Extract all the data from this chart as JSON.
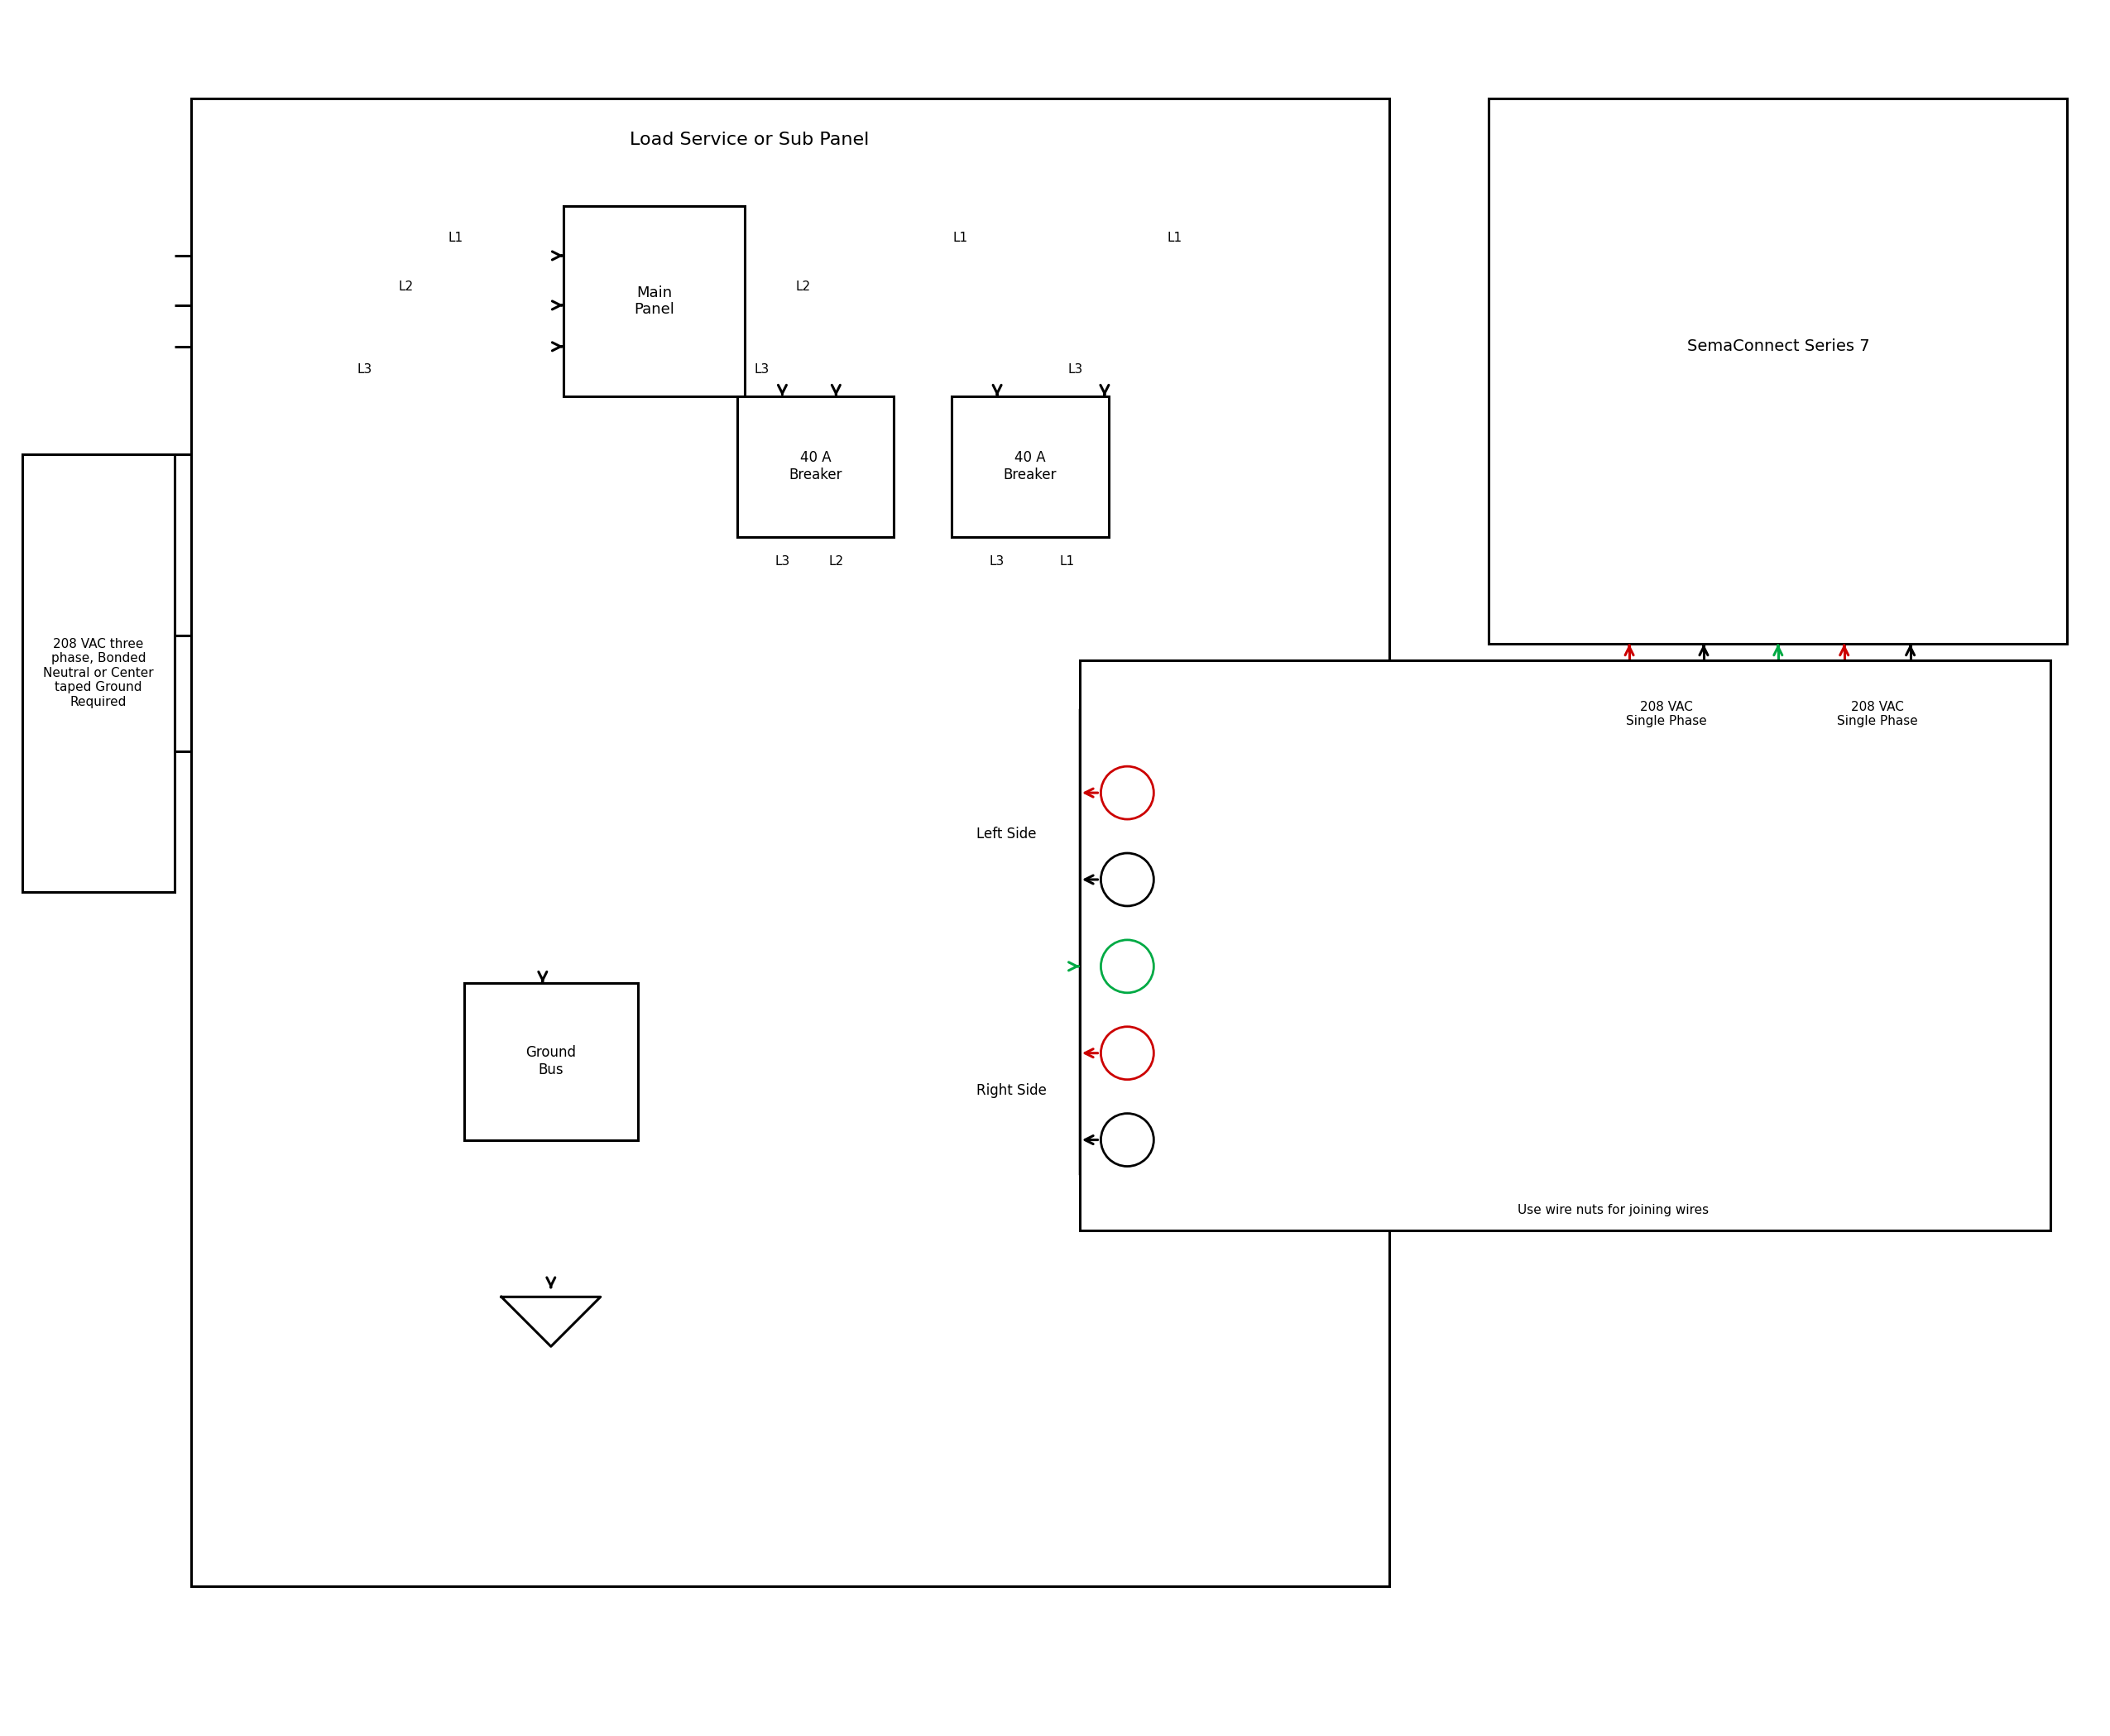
{
  "bg_color": "#ffffff",
  "line_color": "#000000",
  "red_color": "#cc0000",
  "green_color": "#00aa44",
  "title": "Load Service or Sub Panel",
  "sema_title": "SemaConnect Series 7",
  "source_box_text": "208 VAC three\nphase, Bonded\nNeutral or Center\ntaped Ground\nRequired",
  "main_panel_text": "Main\nPanel",
  "breaker1_text": "40 A\nBreaker",
  "breaker2_text": "40 A\nBreaker",
  "ground_bus_text": "Ground\nBus",
  "wire_nuts_text": "Use wire nuts for joining wires",
  "left_side_text": "Left Side",
  "right_side_text": "Right Side",
  "vac_left_text": "208 VAC\nSingle Phase",
  "vac_right_text": "208 VAC\nSingle Phase"
}
